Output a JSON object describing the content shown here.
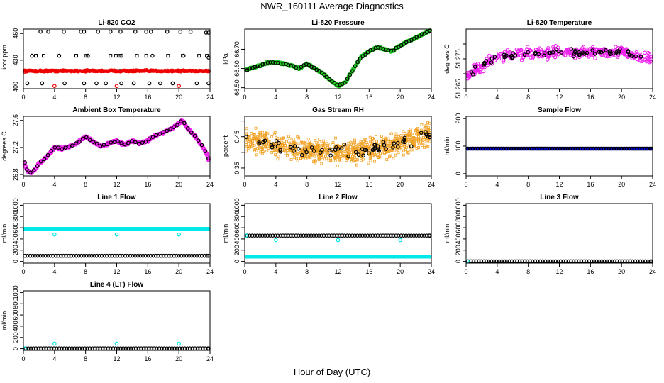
{
  "page": {
    "title": "NWR_160111  Average Diagnostics",
    "xlabel": "Hour of Day (UTC)"
  },
  "chart_data": [
    {
      "type": "scatter",
      "title": "Li-820 CO2",
      "ylabel": "Licor ppm",
      "xlim": [
        0,
        24
      ],
      "xticks": [
        0,
        4,
        8,
        12,
        16,
        20,
        24
      ],
      "ylim": [
        398,
        465
      ],
      "yticks": [
        400,
        430,
        460
      ],
      "series": [
        {
          "color": "#000000",
          "marker": "circle",
          "x": [
            2.2,
            3.2,
            5.2,
            7.4,
            7.8,
            9.6,
            11.2,
            12.5,
            14.4,
            15.8,
            16.4,
            18.5,
            20.2,
            21.5,
            23.5,
            23.9,
            1.1,
            4.6,
            8.3,
            12.6,
            16.6,
            20.6,
            24,
            1.2,
            4.5,
            8.5,
            12.4,
            16.4,
            20.4,
            24,
            0.5,
            2.4,
            5.3,
            7.8,
            9.4,
            10.6,
            12.6,
            14.2,
            16.2,
            17.6,
            19.2,
            22.3,
            24
          ],
          "y": [
            462,
            462,
            462,
            462,
            462,
            462,
            462,
            462,
            462,
            462,
            462,
            462,
            462,
            462,
            461,
            461,
            435,
            435,
            435,
            435,
            435,
            435,
            433,
            418,
            418,
            418,
            418,
            418,
            418,
            418,
            404,
            404,
            404,
            404,
            404,
            404,
            404,
            404,
            404,
            404,
            404,
            404,
            404
          ]
        },
        {
          "color": "#000000",
          "marker": "square",
          "x": [
            1.6,
            2.6,
            6.8,
            8.1,
            11.2,
            11.9,
            12.4,
            14.6,
            15.8,
            18.6,
            20.5,
            22.6,
            23.6,
            5.1,
            14.1,
            19.8
          ],
          "y": [
            435,
            435,
            435,
            435,
            435,
            435,
            435,
            435,
            435,
            435,
            435,
            435,
            435,
            418,
            418,
            418
          ]
        },
        {
          "color": "#ee0000",
          "marker": "band",
          "x": [
            0,
            24
          ],
          "y": [
            418,
            418
          ],
          "spread": 1.2
        },
        {
          "color": "#ee0000",
          "marker": "circle",
          "x": [
            4,
            12,
            20
          ],
          "y": [
            401,
            401,
            401
          ]
        }
      ]
    },
    {
      "type": "scatter",
      "title": "Li-820 Pressure",
      "ylabel": "kPa",
      "xlim": [
        0,
        24
      ],
      "xticks": [
        0,
        4,
        8,
        12,
        16,
        20,
        24
      ],
      "ylim": [
        66.495,
        66.805
      ],
      "yticks": [
        66.5,
        66.6,
        66.7
      ],
      "ytick_labels": [
        "66.50",
        "66.60",
        "66.70"
      ],
      "series": [
        {
          "color": "#22cc22",
          "marker": "dense-line",
          "spread": 0.007,
          "x": [
            0,
            1,
            2,
            3,
            4,
            5,
            6,
            7,
            8,
            9,
            10,
            11,
            12,
            13,
            14,
            15,
            16,
            17,
            18,
            19,
            20,
            21,
            22,
            23,
            24
          ],
          "y": [
            66.59,
            66.605,
            66.615,
            66.63,
            66.63,
            66.625,
            66.615,
            66.6,
            66.625,
            66.6,
            66.575,
            66.54,
            66.51,
            66.53,
            66.6,
            66.66,
            66.69,
            66.71,
            66.7,
            66.69,
            66.72,
            66.74,
            66.76,
            66.78,
            66.8
          ]
        },
        {
          "color": "#000000",
          "marker": "circle",
          "step": 0.33,
          "spread": 0.005,
          "x": [
            0,
            1,
            2,
            3,
            4,
            5,
            6,
            7,
            8,
            9,
            10,
            11,
            12,
            13,
            14,
            15,
            16,
            17,
            18,
            19,
            20,
            21,
            22,
            23,
            24
          ],
          "y": [
            66.59,
            66.605,
            66.615,
            66.63,
            66.63,
            66.625,
            66.615,
            66.6,
            66.625,
            66.6,
            66.575,
            66.54,
            66.51,
            66.53,
            66.6,
            66.66,
            66.69,
            66.71,
            66.7,
            66.69,
            66.72,
            66.74,
            66.76,
            66.78,
            66.8
          ]
        }
      ]
    },
    {
      "type": "scatter",
      "title": "Li-820 Temperature",
      "ylabel": "degrees C",
      "xlim": [
        0,
        24
      ],
      "xticks": [
        0,
        4,
        8,
        12,
        16,
        20,
        24
      ],
      "ylim": [
        51.265,
        51.285
      ],
      "yticks": [
        51.265,
        51.27,
        51.275,
        51.28
      ],
      "ytick_labels": [
        "51.265",
        "",
        "51.275",
        ""
      ],
      "series": [
        {
          "color": "#ee22ee",
          "marker": "cloud",
          "n": 380,
          "spread": 0.0027,
          "x": [
            0,
            1,
            2,
            3,
            4,
            6,
            8,
            10,
            12,
            14,
            16,
            18,
            20,
            22,
            24
          ],
          "y": [
            51.269,
            51.271,
            51.2725,
            51.274,
            51.2755,
            51.2765,
            51.277,
            51.2765,
            51.2775,
            51.277,
            51.2775,
            51.277,
            51.2775,
            51.2755,
            51.275
          ]
        },
        {
          "color": "#000000",
          "marker": "circle",
          "n": 70,
          "spread": 0.0016,
          "x": [
            0,
            1,
            2,
            3,
            4,
            6,
            8,
            10,
            12,
            14,
            16,
            18,
            20,
            22,
            24
          ],
          "y": [
            51.269,
            51.271,
            51.2725,
            51.274,
            51.2755,
            51.2765,
            51.277,
            51.2765,
            51.2775,
            51.277,
            51.2775,
            51.277,
            51.2775,
            51.2755,
            51.275
          ]
        }
      ]
    },
    {
      "type": "scatter",
      "title": "Ambient Box Temperature",
      "ylabel": "degrees C",
      "xlim": [
        0,
        24
      ],
      "xticks": [
        0,
        4,
        8,
        12,
        16,
        20,
        24
      ],
      "ylim": [
        26.78,
        27.66
      ],
      "yticks": [
        26.8,
        27.2,
        27.6
      ],
      "ytick_labels": [
        "26.8",
        "27.2",
        "27.6"
      ],
      "series": [
        {
          "color": "#ee22ee",
          "marker": "dense-line",
          "spread": 0.025,
          "x": [
            0,
            0.5,
            1,
            1.5,
            2,
            3,
            4,
            5,
            6,
            7,
            8,
            9,
            10,
            11,
            12,
            13,
            14,
            15,
            16,
            17,
            18,
            19,
            20,
            20.5,
            21,
            22,
            23,
            23.5,
            24
          ],
          "y": [
            26.98,
            26.86,
            26.82,
            26.88,
            26.96,
            27.06,
            27.2,
            27.18,
            27.22,
            27.27,
            27.36,
            27.28,
            27.22,
            27.26,
            27.3,
            27.24,
            27.3,
            27.26,
            27.3,
            27.38,
            27.42,
            27.48,
            27.55,
            27.6,
            27.5,
            27.38,
            27.22,
            27.12,
            27.0
          ]
        },
        {
          "color": "#000000",
          "marker": "circle",
          "step": 0.45,
          "spread": 0.015,
          "x": [
            0,
            0.5,
            1,
            1.5,
            2,
            3,
            4,
            5,
            6,
            7,
            8,
            9,
            10,
            11,
            12,
            13,
            14,
            15,
            16,
            17,
            18,
            19,
            20,
            20.5,
            21,
            22,
            23,
            23.5,
            24
          ],
          "y": [
            26.98,
            26.86,
            26.82,
            26.88,
            26.96,
            27.06,
            27.2,
            27.18,
            27.22,
            27.27,
            27.36,
            27.28,
            27.22,
            27.26,
            27.3,
            27.24,
            27.3,
            27.26,
            27.3,
            27.38,
            27.42,
            27.48,
            27.55,
            27.6,
            27.5,
            27.38,
            27.22,
            27.12,
            27.0
          ]
        }
      ]
    },
    {
      "type": "scatter",
      "title": "Gas Stream RH",
      "ylabel": "percent",
      "xlim": [
        0,
        24
      ],
      "xticks": [
        0,
        4,
        8,
        12,
        16,
        20,
        24
      ],
      "ylim": [
        0.325,
        0.515
      ],
      "yticks": [
        0.35,
        0.4,
        0.45,
        0.5
      ],
      "ytick_labels": [
        "0.35",
        "",
        "0.45",
        ""
      ],
      "series": [
        {
          "color": "#f0a020",
          "marker": "cloud-square",
          "n": 850,
          "spread": 0.052,
          "x": [
            0,
            2,
            4,
            6,
            8,
            10,
            12,
            14,
            16,
            18,
            20,
            22,
            24
          ],
          "y": [
            0.445,
            0.43,
            0.425,
            0.415,
            0.41,
            0.405,
            0.4,
            0.4,
            0.41,
            0.415,
            0.43,
            0.44,
            0.46
          ]
        },
        {
          "color": "#000000",
          "marker": "circle",
          "n": 70,
          "spread": 0.03,
          "x": [
            0,
            2,
            4,
            6,
            8,
            10,
            12,
            14,
            16,
            18,
            20,
            22,
            24
          ],
          "y": [
            0.445,
            0.43,
            0.425,
            0.415,
            0.41,
            0.405,
            0.4,
            0.4,
            0.41,
            0.415,
            0.43,
            0.44,
            0.46
          ]
        }
      ]
    },
    {
      "type": "scatter",
      "title": "Sample Flow",
      "ylabel": "ml/min",
      "xlim": [
        0,
        24
      ],
      "xticks": [
        0,
        4,
        8,
        12,
        16,
        20,
        24
      ],
      "ylim": [
        -8,
        208
      ],
      "yticks": [
        0,
        100,
        200
      ],
      "series": [
        {
          "color": "#0000cc",
          "marker": "dense-flat",
          "x": [
            0,
            24
          ],
          "y": [
            91,
            91
          ]
        },
        {
          "color": "#000000",
          "marker": "circle",
          "step": 0.33,
          "x": [
            0.2,
            24
          ],
          "y": [
            91,
            91
          ]
        }
      ]
    },
    {
      "type": "scatter",
      "title": "Line 1 Flow",
      "ylabel": "ml/min",
      "xlim": [
        0,
        24
      ],
      "xticks": [
        0,
        4,
        8,
        12,
        16,
        20,
        24
      ],
      "ylim": [
        -30,
        1030
      ],
      "yticks": [
        0,
        200,
        400,
        600,
        800,
        1000
      ],
      "ytick_labels": [
        "0",
        "200",
        "400",
        "600",
        "800",
        "1000"
      ],
      "series": [
        {
          "color": "#00e8e8",
          "marker": "dense-flat",
          "x": [
            0,
            24
          ],
          "y": [
            580,
            580
          ]
        },
        {
          "color": "#00e8e8",
          "marker": "circle",
          "x": [
            4,
            12,
            20
          ],
          "y": [
            480,
            480,
            480
          ]
        },
        {
          "color": "#000000",
          "marker": "circle",
          "step": 0.33,
          "x": [
            0.2,
            24
          ],
          "y": [
            100,
            100
          ]
        }
      ]
    },
    {
      "type": "scatter",
      "title": "Line 2 Flow",
      "ylabel": "ml/min",
      "xlim": [
        0,
        24
      ],
      "xticks": [
        0,
        4,
        8,
        12,
        16,
        20,
        24
      ],
      "ylim": [
        -30,
        1030
      ],
      "yticks": [
        0,
        200,
        400,
        600,
        800,
        1000
      ],
      "ytick_labels": [
        "0",
        "200",
        "400",
        "600",
        "800",
        "1000"
      ],
      "series": [
        {
          "color": "#000000",
          "marker": "circle",
          "step": 0.33,
          "x": [
            0.3,
            24
          ],
          "y": [
            460,
            460
          ]
        },
        {
          "color": "#00e8e8",
          "marker": "dense-flat",
          "x": [
            0,
            24
          ],
          "y": [
            85,
            85
          ]
        },
        {
          "color": "#00e8e8",
          "marker": "circle",
          "x": [
            0,
            4,
            12,
            20
          ],
          "y": [
            460,
            380,
            380,
            380
          ]
        }
      ]
    },
    {
      "type": "scatter",
      "title": "Line 3 Flow",
      "ylabel": "ml/min",
      "xlim": [
        0,
        24
      ],
      "xticks": [
        0,
        4,
        8,
        12,
        16,
        20,
        24
      ],
      "ylim": [
        -30,
        1030
      ],
      "yticks": [
        0,
        200,
        400,
        600,
        800,
        1000
      ],
      "ytick_labels": [
        "0",
        "200",
        "400",
        "600",
        "800",
        "1000"
      ],
      "series": [
        {
          "color": "#000000",
          "marker": "circle",
          "step": 0.33,
          "x": [
            0.3,
            24
          ],
          "y": [
            3,
            3
          ]
        },
        {
          "color": "#00e8e8",
          "marker": "circle",
          "x": [
            0
          ],
          "y": [
            3
          ]
        }
      ]
    },
    {
      "type": "scatter",
      "title": "Line 4 (LT) Flow",
      "ylabel": "ml/min",
      "xlim": [
        0,
        24
      ],
      "xticks": [
        0,
        4,
        8,
        12,
        16,
        20,
        24
      ],
      "ylim": [
        -30,
        1030
      ],
      "yticks": [
        0,
        200,
        400,
        600,
        800,
        1000
      ],
      "ytick_labels": [
        "0",
        "200",
        "400",
        "600",
        "800",
        "1000"
      ],
      "series": [
        {
          "color": "#000000",
          "marker": "circle",
          "step": 0.33,
          "x": [
            0.3,
            24
          ],
          "y": [
            5,
            5
          ]
        },
        {
          "color": "#00e8e8",
          "marker": "circle",
          "x": [
            0,
            4,
            12,
            20
          ],
          "y": [
            5,
            90,
            90,
            90
          ]
        }
      ]
    }
  ]
}
